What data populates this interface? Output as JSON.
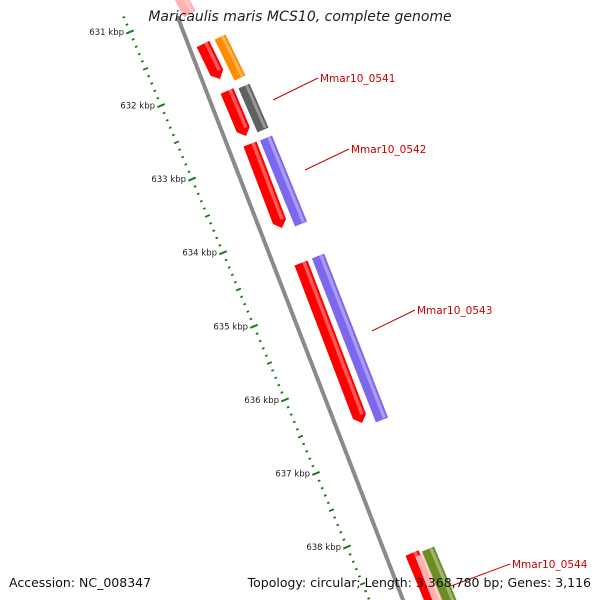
{
  "title": "Maricaulis maris MCS10, complete genome",
  "footer": {
    "accession": "Accession: NC_008347",
    "summary": "Topology: circular; Length: 3,368,780 bp; Genes: 3,116"
  },
  "colors": {
    "ticks": "#1a7a1a",
    "backbone": "#8a8a8a",
    "label": "#cc0000",
    "gene_red": "#ff0000",
    "gene_orange": "#ff8c00",
    "gene_gray": "#606060",
    "gene_blue": "#7b68ee",
    "gene_olive": "#6b8e23",
    "gene_pink": "#ffb0b0"
  },
  "scale": {
    "unit": "kbp",
    "ticks": [
      {
        "value": 631,
        "label": "631 kbp"
      },
      {
        "value": 632,
        "label": "632 kbp"
      },
      {
        "value": 633,
        "label": "633 kbp"
      },
      {
        "value": 634,
        "label": "634 kbp"
      },
      {
        "value": 635,
        "label": "635 kbp"
      },
      {
        "value": 636,
        "label": "636 kbp"
      },
      {
        "value": 637,
        "label": "637 kbp"
      },
      {
        "value": 638,
        "label": "638 kbp"
      }
    ]
  },
  "genes": [
    {
      "name": "Mmar10_0541",
      "color": "gene_gray"
    },
    {
      "name": "Mmar10_0542",
      "color": "gene_blue"
    },
    {
      "name": "Mmar10_0543",
      "color": "gene_blue"
    },
    {
      "name": "Mmar10_0544",
      "color": "gene_olive"
    }
  ],
  "feature_colors": [
    "gene_pink",
    "gene_red",
    "gene_orange",
    "gene_red",
    "gene_gray",
    "gene_red",
    "gene_blue",
    "gene_red",
    "gene_blue",
    "gene_red",
    "gene_pink",
    "gene_olive"
  ]
}
